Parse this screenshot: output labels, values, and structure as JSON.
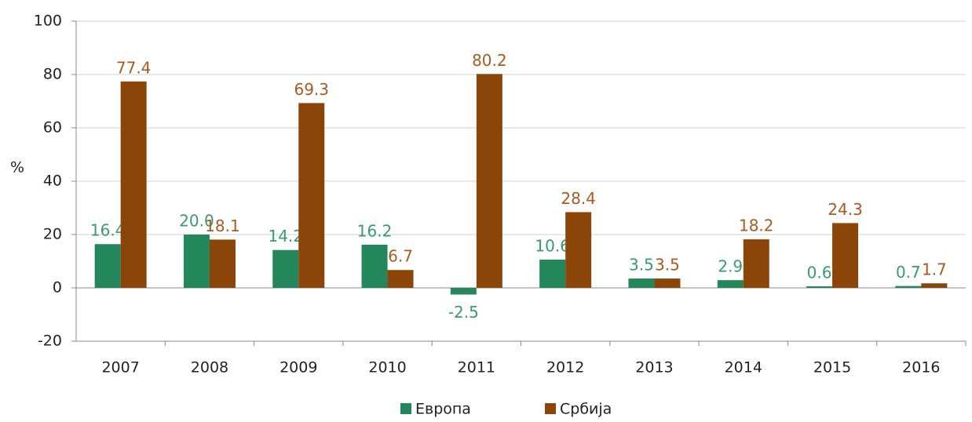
{
  "chart_data": {
    "type": "bar",
    "y_label": "%",
    "categories": [
      "2007",
      "2008",
      "2009",
      "2010",
      "2011",
      "2012",
      "2013",
      "2014",
      "2015",
      "2016"
    ],
    "series": [
      {
        "name": "Европа",
        "color": "#24875b",
        "label_color": "#3a9a70",
        "values": [
          16.4,
          20.0,
          14.2,
          16.2,
          -2.5,
          10.6,
          3.5,
          2.9,
          0.6,
          0.7
        ],
        "value_labels": [
          "16.4",
          "20.0",
          "14.2",
          "16.2",
          "-2.5",
          "10.6",
          "3.5",
          "2.9",
          "0.6",
          "0.7"
        ]
      },
      {
        "name": "Србија",
        "color": "#8b4509",
        "label_color": "#a85a22",
        "values": [
          77.4,
          18.1,
          69.3,
          6.7,
          80.2,
          28.4,
          3.5,
          18.2,
          24.3,
          1.7
        ],
        "value_labels": [
          "77.4",
          "18.1",
          "69.3",
          "6.7",
          "80.2",
          "28.4",
          "3.5",
          "18.2",
          "24.3",
          "1.7"
        ]
      }
    ],
    "ylim": [
      -20,
      100
    ],
    "yticks": [
      -20,
      0,
      20,
      40,
      60,
      80,
      100
    ],
    "grid": true,
    "legend": "bottom"
  }
}
